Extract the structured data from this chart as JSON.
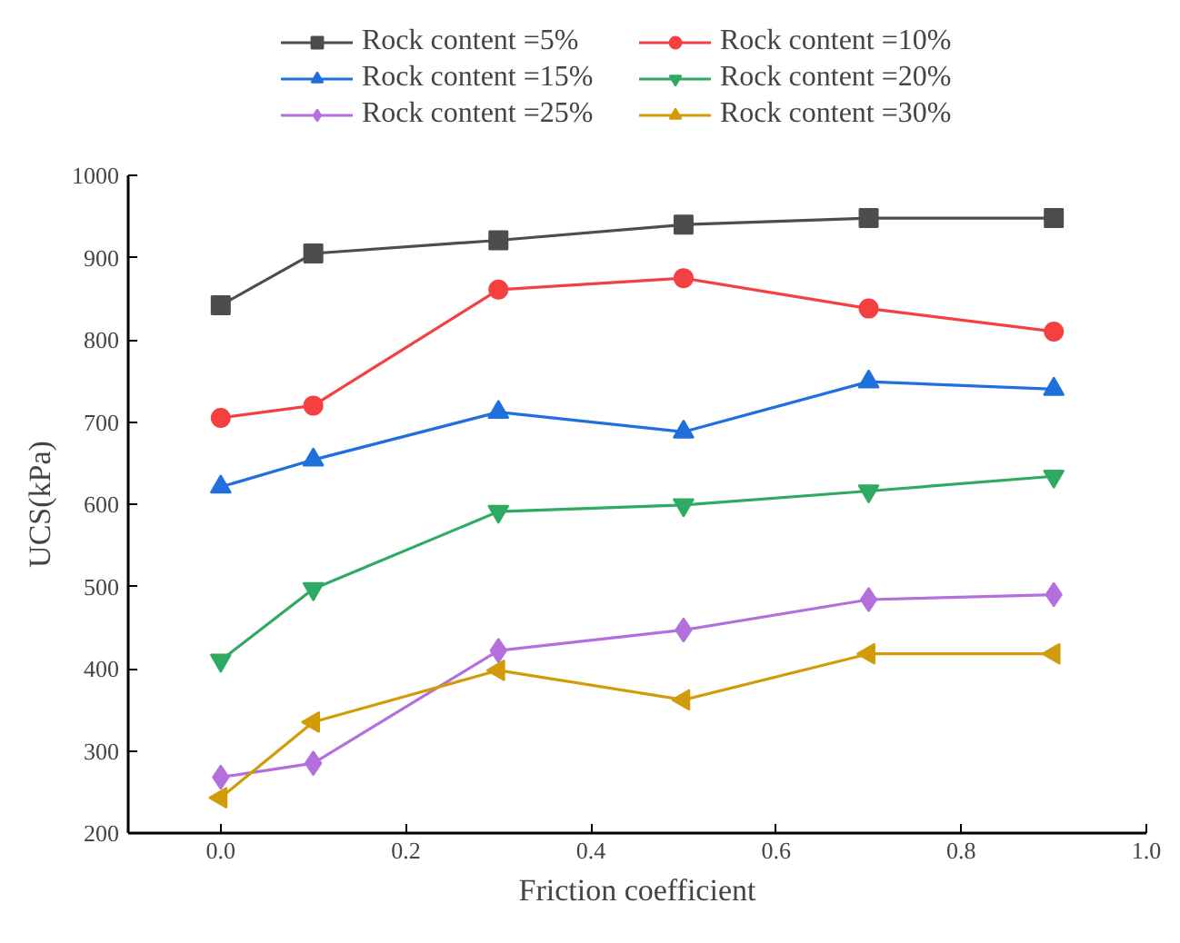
{
  "chart_data": {
    "type": "line",
    "xlabel": "Friction coefficient",
    "ylabel": "UCS(kPa)",
    "x": [
      0.0,
      0.1,
      0.3,
      0.5,
      0.7,
      0.9
    ],
    "xlim": [
      -0.1,
      1.0
    ],
    "xticks": [
      {
        "value": 0,
        "label": "0.0"
      },
      {
        "value": 0.2,
        "label": "0.2"
      },
      {
        "value": 0.4,
        "label": "0.4"
      },
      {
        "value": 0.6,
        "label": "0.6"
      },
      {
        "value": 0.8,
        "label": "0.8"
      },
      {
        "value": 1.0,
        "label": "1.0"
      }
    ],
    "ylim": [
      200,
      1000
    ],
    "yticks": [
      200,
      300,
      400,
      500,
      600,
      700,
      800,
      900,
      1000
    ],
    "grid": false,
    "legend": "top",
    "line_style": "solid",
    "series": [
      {
        "name": "Rock content =5%",
        "color": "#4d4d4d",
        "marker": "square",
        "values": [
          842,
          905,
          921,
          940,
          948,
          948
        ]
      },
      {
        "name": "Rock content =10%",
        "color": "#f44040",
        "marker": "circle",
        "values": [
          705,
          720,
          861,
          875,
          838,
          810
        ]
      },
      {
        "name": "Rock content =15%",
        "color": "#1f6fdd",
        "marker": "triangle",
        "values": [
          621,
          654,
          712,
          688,
          749,
          740
        ]
      },
      {
        "name": "Rock content =20%",
        "color": "#2eaa62",
        "marker": "triangle_down",
        "values": [
          410,
          497,
          591,
          599,
          616,
          634
        ]
      },
      {
        "name": "Rock content =25%",
        "color": "#b56fdc",
        "marker": "diamond",
        "values": [
          268,
          285,
          422,
          447,
          484,
          490
        ]
      },
      {
        "name": "Rock content =30%",
        "color": "#d19b0a",
        "marker": "triangle_left",
        "values": [
          243,
          335,
          398,
          362,
          418,
          418
        ]
      }
    ]
  }
}
